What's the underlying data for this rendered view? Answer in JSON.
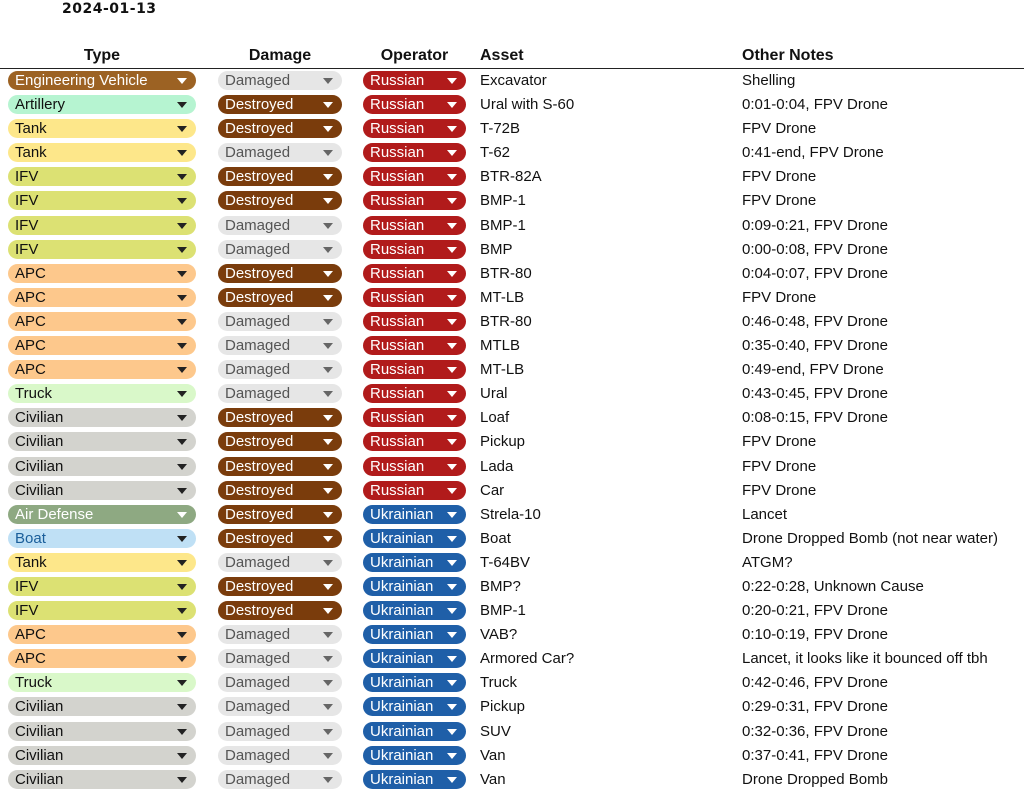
{
  "date": "2024-01-13",
  "headers": {
    "type": "Type",
    "damage": "Damage",
    "operator": "Operator",
    "asset": "Asset",
    "notes": "Other Notes"
  },
  "type_colors": {
    "Engineering Vehicle": {
      "bg": "#9c6223",
      "fg": "#ffffff"
    },
    "Artillery": {
      "bg": "#b6f4d1",
      "fg": "#111111"
    },
    "Tank": {
      "bg": "#fde78a",
      "fg": "#111111"
    },
    "IFV": {
      "bg": "#dce173",
      "fg": "#111111"
    },
    "APC": {
      "bg": "#fdc88c",
      "fg": "#111111"
    },
    "Truck": {
      "bg": "#d9f8c9",
      "fg": "#111111"
    },
    "Civilian": {
      "bg": "#d3d3ce",
      "fg": "#111111"
    },
    "Air Defense": {
      "bg": "#8ea982",
      "fg": "#ffffff"
    },
    "Boat": {
      "bg": "#bfe0f5",
      "fg": "#1a5e9a"
    }
  },
  "damage_colors": {
    "Damaged": {
      "bg": "#e6e6e6",
      "fg": "#555555"
    },
    "Destroyed": {
      "bg": "#7a3c0c",
      "fg": "#ffffff"
    }
  },
  "operator_colors": {
    "Russian": {
      "bg": "#b11b1b",
      "fg": "#ffffff"
    },
    "Ukrainian": {
      "bg": "#1f5fa8",
      "fg": "#ffffff"
    }
  },
  "rows": [
    {
      "type": "Engineering Vehicle",
      "damage": "Damaged",
      "operator": "Russian",
      "asset": "Excavator",
      "notes": "Shelling"
    },
    {
      "type": "Artillery",
      "damage": "Destroyed",
      "operator": "Russian",
      "asset": "Ural with S-60",
      "notes": "0:01-0:04, FPV Drone"
    },
    {
      "type": "Tank",
      "damage": "Destroyed",
      "operator": "Russian",
      "asset": "T-72B",
      "notes": "FPV Drone"
    },
    {
      "type": "Tank",
      "damage": "Damaged",
      "operator": "Russian",
      "asset": "T-62",
      "notes": "0:41-end, FPV Drone"
    },
    {
      "type": "IFV",
      "damage": "Destroyed",
      "operator": "Russian",
      "asset": "BTR-82A",
      "notes": "FPV Drone"
    },
    {
      "type": "IFV",
      "damage": "Destroyed",
      "operator": "Russian",
      "asset": "BMP-1",
      "notes": "FPV Drone"
    },
    {
      "type": "IFV",
      "damage": "Damaged",
      "operator": "Russian",
      "asset": "BMP-1",
      "notes": "0:09-0:21, FPV Drone"
    },
    {
      "type": "IFV",
      "damage": "Damaged",
      "operator": "Russian",
      "asset": "BMP",
      "notes": "0:00-0:08, FPV Drone"
    },
    {
      "type": "APC",
      "damage": "Destroyed",
      "operator": "Russian",
      "asset": "BTR-80",
      "notes": "0:04-0:07, FPV Drone"
    },
    {
      "type": "APC",
      "damage": "Destroyed",
      "operator": "Russian",
      "asset": "MT-LB",
      "notes": "FPV Drone"
    },
    {
      "type": "APC",
      "damage": "Damaged",
      "operator": "Russian",
      "asset": "BTR-80",
      "notes": "0:46-0:48, FPV Drone"
    },
    {
      "type": "APC",
      "damage": "Damaged",
      "operator": "Russian",
      "asset": "MTLB",
      "notes": "0:35-0:40, FPV Drone"
    },
    {
      "type": "APC",
      "damage": "Damaged",
      "operator": "Russian",
      "asset": "MT-LB",
      "notes": "0:49-end, FPV Drone"
    },
    {
      "type": "Truck",
      "damage": "Damaged",
      "operator": "Russian",
      "asset": "Ural",
      "notes": "0:43-0:45, FPV Drone"
    },
    {
      "type": "Civilian",
      "damage": "Destroyed",
      "operator": "Russian",
      "asset": "Loaf",
      "notes": "0:08-0:15, FPV Drone"
    },
    {
      "type": "Civilian",
      "damage": "Destroyed",
      "operator": "Russian",
      "asset": "Pickup",
      "notes": "FPV Drone"
    },
    {
      "type": "Civilian",
      "damage": "Destroyed",
      "operator": "Russian",
      "asset": "Lada",
      "notes": "FPV Drone"
    },
    {
      "type": "Civilian",
      "damage": "Destroyed",
      "operator": "Russian",
      "asset": "Car",
      "notes": "FPV Drone"
    },
    {
      "type": "Air Defense",
      "damage": "Destroyed",
      "operator": "Ukrainian",
      "asset": "Strela-10",
      "notes": "Lancet"
    },
    {
      "type": "Boat",
      "damage": "Destroyed",
      "operator": "Ukrainian",
      "asset": "Boat",
      "notes": "Drone Dropped Bomb (not near water)"
    },
    {
      "type": "Tank",
      "damage": "Damaged",
      "operator": "Ukrainian",
      "asset": "T-64BV",
      "notes": "ATGM?"
    },
    {
      "type": "IFV",
      "damage": "Destroyed",
      "operator": "Ukrainian",
      "asset": "BMP?",
      "notes": "0:22-0:28, Unknown Cause"
    },
    {
      "type": "IFV",
      "damage": "Destroyed",
      "operator": "Ukrainian",
      "asset": "BMP-1",
      "notes": "0:20-0:21, FPV Drone"
    },
    {
      "type": "APC",
      "damage": "Damaged",
      "operator": "Ukrainian",
      "asset": "VAB?",
      "notes": "0:10-0:19, FPV Drone"
    },
    {
      "type": "APC",
      "damage": "Damaged",
      "operator": "Ukrainian",
      "asset": "Armored Car?",
      "notes": "Lancet, it looks like it bounced off tbh"
    },
    {
      "type": "Truck",
      "damage": "Damaged",
      "operator": "Ukrainian",
      "asset": "Truck",
      "notes": "0:42-0:46, FPV Drone"
    },
    {
      "type": "Civilian",
      "damage": "Damaged",
      "operator": "Ukrainian",
      "asset": "Pickup",
      "notes": "0:29-0:31, FPV Drone"
    },
    {
      "type": "Civilian",
      "damage": "Damaged",
      "operator": "Ukrainian",
      "asset": "SUV",
      "notes": "0:32-0:36, FPV Drone"
    },
    {
      "type": "Civilian",
      "damage": "Damaged",
      "operator": "Ukrainian",
      "asset": "Van",
      "notes": "0:37-0:41, FPV Drone"
    },
    {
      "type": "Civilian",
      "damage": "Damaged",
      "operator": "Ukrainian",
      "asset": "Van",
      "notes": "Drone Dropped Bomb"
    }
  ]
}
